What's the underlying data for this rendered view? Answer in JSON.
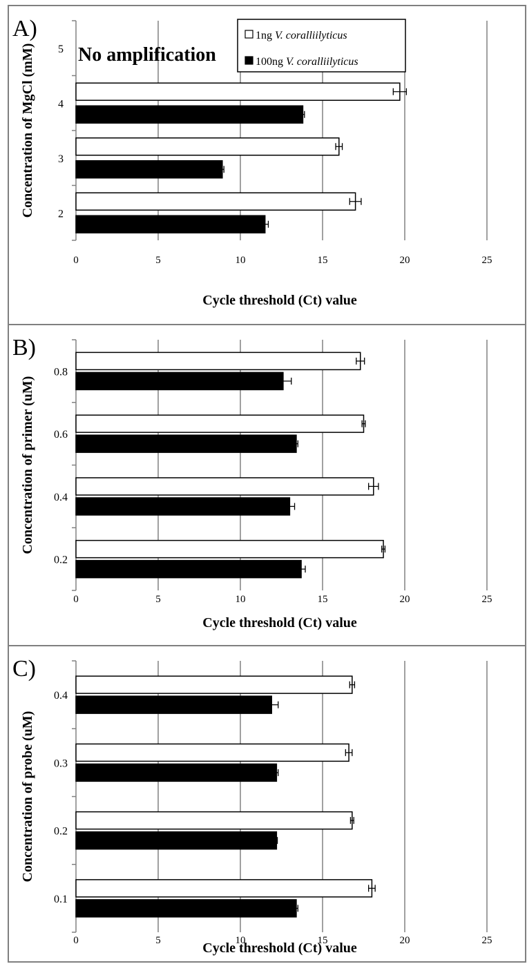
{
  "colors": {
    "frame": "#7f7f7f",
    "grid": "#808080",
    "bar_1ng": "#ffffff",
    "bar_100ng": "#000000",
    "bar_outline": "#000000"
  },
  "chart_data": [
    {
      "type": "bar",
      "orientation": "horizontal",
      "panel_label": "A)",
      "xlabel": "Cycle threshold (Ct) value",
      "ylabel": "Concentration of MgCl (mM)",
      "categories": [
        "2",
        "3",
        "4",
        "5"
      ],
      "x_ticks": [
        "0",
        "5",
        "10",
        "15",
        "20",
        "25"
      ],
      "xlim": [
        0,
        25
      ],
      "grid": "vertical",
      "legend": {
        "placement": "top-right",
        "entries": [
          {
            "prefix": "1ng ",
            "italic": "V. coralliilyticus"
          },
          {
            "prefix": "100ng ",
            "italic": "V. coralliilyticus"
          }
        ]
      },
      "annotation": "No amplification",
      "series": [
        {
          "name": "1ng V. coralliilyticus",
          "values": [
            17.0,
            16.0,
            19.7,
            null
          ],
          "errors": [
            0.35,
            0.2,
            0.4,
            null
          ]
        },
        {
          "name": "100ng V. coralliilyticus",
          "values": [
            11.5,
            8.9,
            13.8,
            null
          ],
          "errors": [
            0.2,
            0.1,
            0.1,
            null
          ]
        }
      ]
    },
    {
      "type": "bar",
      "orientation": "horizontal",
      "panel_label": "B)",
      "xlabel": "Cycle threshold (Ct) value",
      "ylabel": "Concentration of primer (uM)",
      "categories": [
        "0.2",
        "0.4",
        "0.6",
        "0.8"
      ],
      "x_ticks": [
        "0",
        "5",
        "10",
        "15",
        "20",
        "25"
      ],
      "xlim": [
        0,
        25
      ],
      "grid": "vertical",
      "series": [
        {
          "name": "1ng V. coralliilyticus",
          "values": [
            18.7,
            18.1,
            17.5,
            17.3
          ],
          "errors": [
            0.1,
            0.3,
            0.1,
            0.25
          ]
        },
        {
          "name": "100ng V. coralliilyticus",
          "values": [
            13.7,
            13.0,
            13.4,
            12.6
          ],
          "errors": [
            0.25,
            0.3,
            0.1,
            0.5
          ]
        }
      ]
    },
    {
      "type": "bar",
      "orientation": "horizontal",
      "panel_label": "C)",
      "xlabel": "Cycle threshold (Ct) value",
      "ylabel": "Concentration of probe (uM)",
      "categories": [
        "0.1",
        "0.2",
        "0.3",
        "0.4"
      ],
      "x_ticks": [
        "0",
        "5",
        "10",
        "15",
        "20",
        "25"
      ],
      "xlim": [
        0,
        25
      ],
      "grid": "vertical",
      "series": [
        {
          "name": "1ng V. coralliilyticus",
          "values": [
            18.0,
            16.8,
            16.6,
            16.8
          ],
          "errors": [
            0.2,
            0.1,
            0.2,
            0.15
          ]
        },
        {
          "name": "100ng V. coralliilyticus",
          "values": [
            13.4,
            12.2,
            12.2,
            11.9
          ],
          "errors": [
            0.1,
            0.05,
            0.1,
            0.4
          ]
        }
      ]
    }
  ]
}
